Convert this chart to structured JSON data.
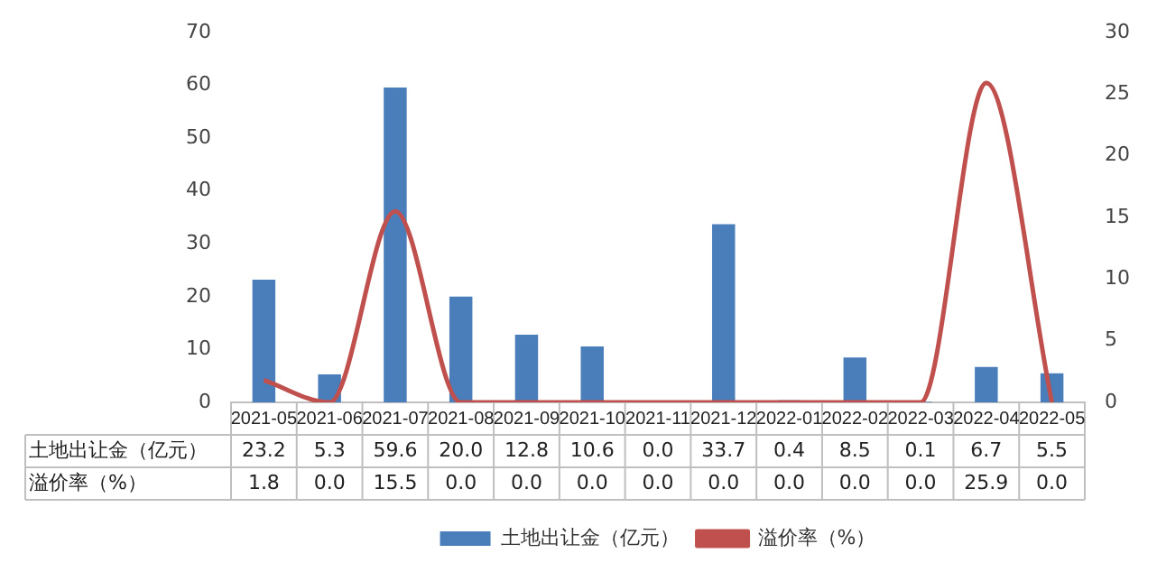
{
  "chart_data": {
    "type": "bar",
    "categories": [
      "2021-05",
      "2021-06",
      "2021-07",
      "2021-08",
      "2021-09",
      "2021-10",
      "2021-11",
      "2021-12",
      "2022-01",
      "2022-02",
      "2022-03",
      "2022-04",
      "2022-05"
    ],
    "series": [
      {
        "name": "土地出让金（亿元）",
        "color": "#4a7ebb",
        "values": [
          23.2,
          5.3,
          59.6,
          20.0,
          12.8,
          10.6,
          0.0,
          33.7,
          0.4,
          8.5,
          0.1,
          6.7,
          5.5
        ],
        "value_labels": [
          "23.2",
          "5.3",
          "59.6",
          "20.0",
          "12.8",
          "10.6",
          "0.0",
          "33.7",
          "0.4",
          "8.5",
          "0.1",
          "6.7",
          "5.5"
        ]
      },
      {
        "name": "溢价率（%）",
        "type": "line",
        "axis": "y2",
        "color": "#c0504d",
        "values": [
          1.8,
          0.0,
          15.5,
          0.0,
          0.0,
          0.0,
          0.0,
          0.0,
          0.0,
          0.0,
          0.0,
          25.9,
          0.0
        ],
        "value_labels": [
          "1.8",
          "0.0",
          "15.5",
          "0.0",
          "0.0",
          "0.0",
          "0.0",
          "0.0",
          "0.0",
          "0.0",
          "0.0",
          "25.9",
          "0.0"
        ]
      }
    ],
    "ylim": [
      0,
      70
    ],
    "yticks": [
      0,
      10,
      20,
      30,
      40,
      50,
      60,
      70
    ],
    "y2lim": [
      0,
      30
    ],
    "y2ticks": [
      0,
      5,
      10,
      15,
      20,
      25,
      30
    ],
    "grid": false,
    "legend": "bottom",
    "marker": "none"
  }
}
